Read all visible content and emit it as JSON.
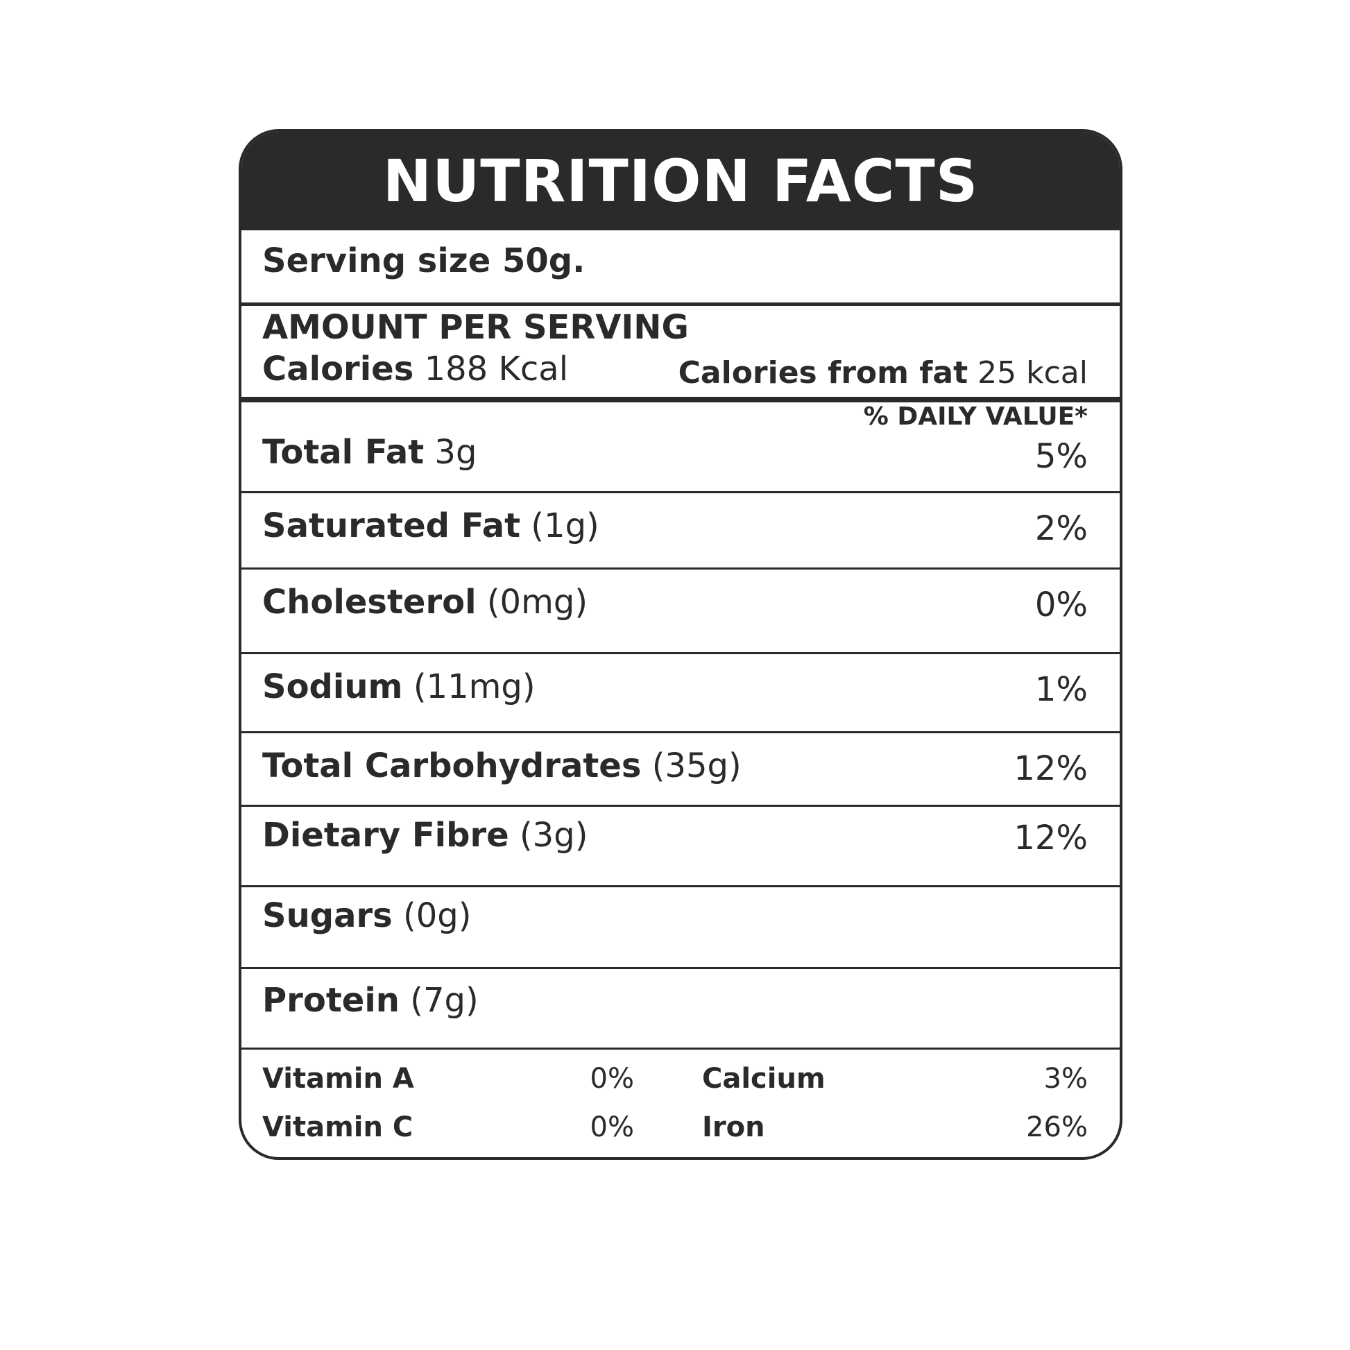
{
  "title": "NUTRITION FACTS",
  "serving": "Serving size 50g.",
  "amount_header": "AMOUNT PER SERVING",
  "calories": {
    "label": "Calories",
    "value": "188 Kcal"
  },
  "calories_fat": {
    "label": "Calories from fat",
    "value": "25 kcal"
  },
  "daily_value_header": "% DAILY VALUE*",
  "nutrients": [
    {
      "name": "Total Fat",
      "amount": "3g",
      "dv": "5%"
    },
    {
      "name": "Saturated Fat",
      "amount": "(1g)",
      "dv": "2%"
    },
    {
      "name": "Cholesterol",
      "amount": "(0mg)",
      "dv": "0%"
    },
    {
      "name": "Sodium",
      "amount": "(11mg)",
      "dv": "1%"
    },
    {
      "name": "Total Carbohydrates",
      "amount": "(35g)",
      "dv": "12%"
    },
    {
      "name": "Dietary Fibre",
      "amount": "(3g)",
      "dv": "12%"
    },
    {
      "name": "Sugars",
      "amount": "(0g)",
      "dv": ""
    },
    {
      "name": "Protein",
      "amount": "(7g)",
      "dv": ""
    }
  ],
  "vitamins": [
    {
      "name": "Vitamin A",
      "value": "0%"
    },
    {
      "name": "Vitamin C",
      "value": "0%"
    },
    {
      "name": "Calcium",
      "value": "3%"
    },
    {
      "name": "Iron",
      "value": "26%"
    }
  ]
}
